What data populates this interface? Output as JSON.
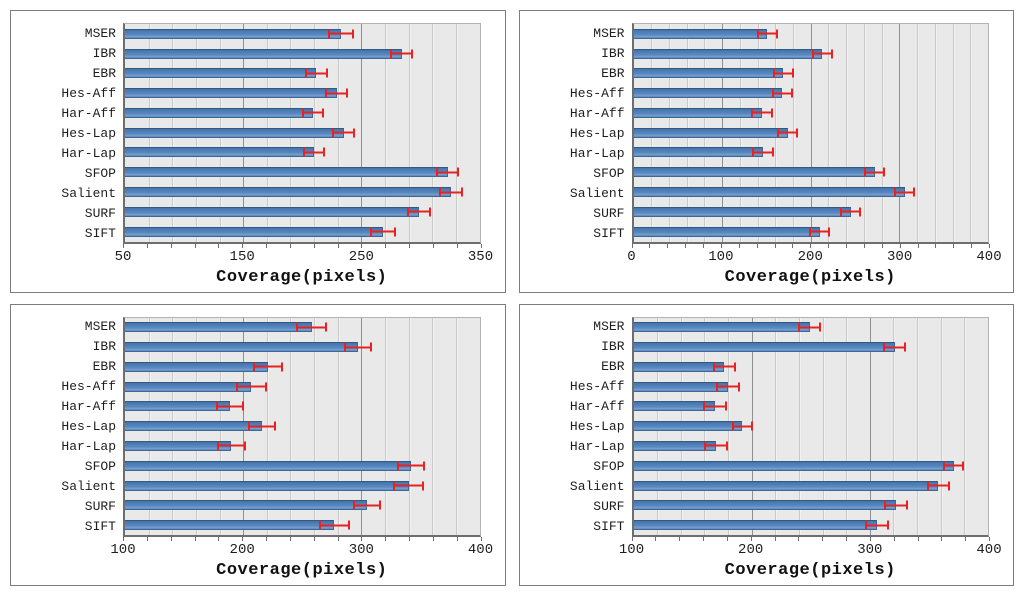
{
  "figure": {
    "xlabel": "Coverage(pixels)"
  },
  "colors": {
    "bar_fill": "#4f81bd",
    "bar_border": "#32597f",
    "error_bar": "#e82222",
    "plot_background": "#e9e9e9",
    "grid_minor": "#c9c9c9",
    "grid_major": "#8f8f8f",
    "axis": "#6e6e6e",
    "panel_border": "#7d7d7d",
    "text": "#1e1e1e"
  },
  "chart_data": [
    {
      "type": "bar",
      "orientation": "horizontal",
      "position": "top-left",
      "title": "",
      "xlabel": "Coverage(pixels)",
      "ylabel": "",
      "xlim": [
        50,
        350
      ],
      "tick_labels": [
        50,
        150,
        250,
        350
      ],
      "minor_step": 20,
      "grid": true,
      "legend": "none",
      "categories": [
        "MSER",
        "IBR",
        "EBR",
        "Hes-Aff",
        "Har-Aff",
        "Hes-Lap",
        "Har-Lap",
        "SFOP",
        "Salient",
        "SURF",
        "SIFT"
      ],
      "values": [
        233,
        284,
        212,
        229,
        209,
        235,
        210,
        323,
        326,
        299,
        268
      ],
      "errors": [
        11,
        10,
        10,
        10,
        9,
        10,
        9,
        10,
        10,
        10,
        11
      ]
    },
    {
      "type": "bar",
      "orientation": "horizontal",
      "position": "top-right",
      "title": "",
      "xlabel": "Coverage(pixels)",
      "ylabel": "",
      "xlim": [
        0,
        400
      ],
      "tick_labels": [
        0,
        100,
        200,
        300,
        400
      ],
      "minor_step": 20,
      "grid": true,
      "legend": "none",
      "categories": [
        "MSER",
        "IBR",
        "EBR",
        "Hes-Aff",
        "Har-Aff",
        "Hes-Lap",
        "Har-Lap",
        "SFOP",
        "Salient",
        "SURF",
        "SIFT"
      ],
      "values": [
        151,
        213,
        169,
        168,
        145,
        174,
        146,
        272,
        306,
        245,
        210
      ],
      "errors": [
        12,
        12,
        12,
        12,
        12,
        12,
        12,
        12,
        12,
        12,
        12
      ]
    },
    {
      "type": "bar",
      "orientation": "horizontal",
      "position": "bottom-left",
      "title": "",
      "xlabel": "Coverage(pixels)",
      "ylabel": "",
      "xlim": [
        100,
        400
      ],
      "tick_labels": [
        100,
        200,
        300,
        400
      ],
      "minor_step": 20,
      "grid": true,
      "legend": "none",
      "categories": [
        "MSER",
        "IBR",
        "EBR",
        "Hes-Aff",
        "Har-Aff",
        "Hes-Lap",
        "Har-Lap",
        "SFOP",
        "Salient",
        "SURF",
        "SIFT"
      ],
      "values": [
        258,
        297,
        221,
        207,
        189,
        216,
        190,
        342,
        340,
        305,
        277
      ],
      "errors": [
        13,
        12,
        13,
        13,
        12,
        12,
        12,
        12,
        13,
        12,
        13
      ]
    },
    {
      "type": "bar",
      "orientation": "horizontal",
      "position": "bottom-right",
      "title": "",
      "xlabel": "Coverage(pixels)",
      "ylabel": "",
      "xlim": [
        100,
        400
      ],
      "tick_labels": [
        100,
        200,
        300,
        400
      ],
      "minor_step": 20,
      "grid": true,
      "legend": "none",
      "categories": [
        "MSER",
        "IBR",
        "EBR",
        "Hes-Aff",
        "Har-Aff",
        "Hes-Lap",
        "Har-Lap",
        "SFOP",
        "Salient",
        "SURF",
        "SIFT"
      ],
      "values": [
        249,
        321,
        177,
        180,
        169,
        192,
        170,
        371,
        358,
        322,
        306
      ],
      "errors": [
        10,
        10,
        10,
        10,
        10,
        9,
        10,
        9,
        10,
        10,
        10
      ]
    }
  ]
}
